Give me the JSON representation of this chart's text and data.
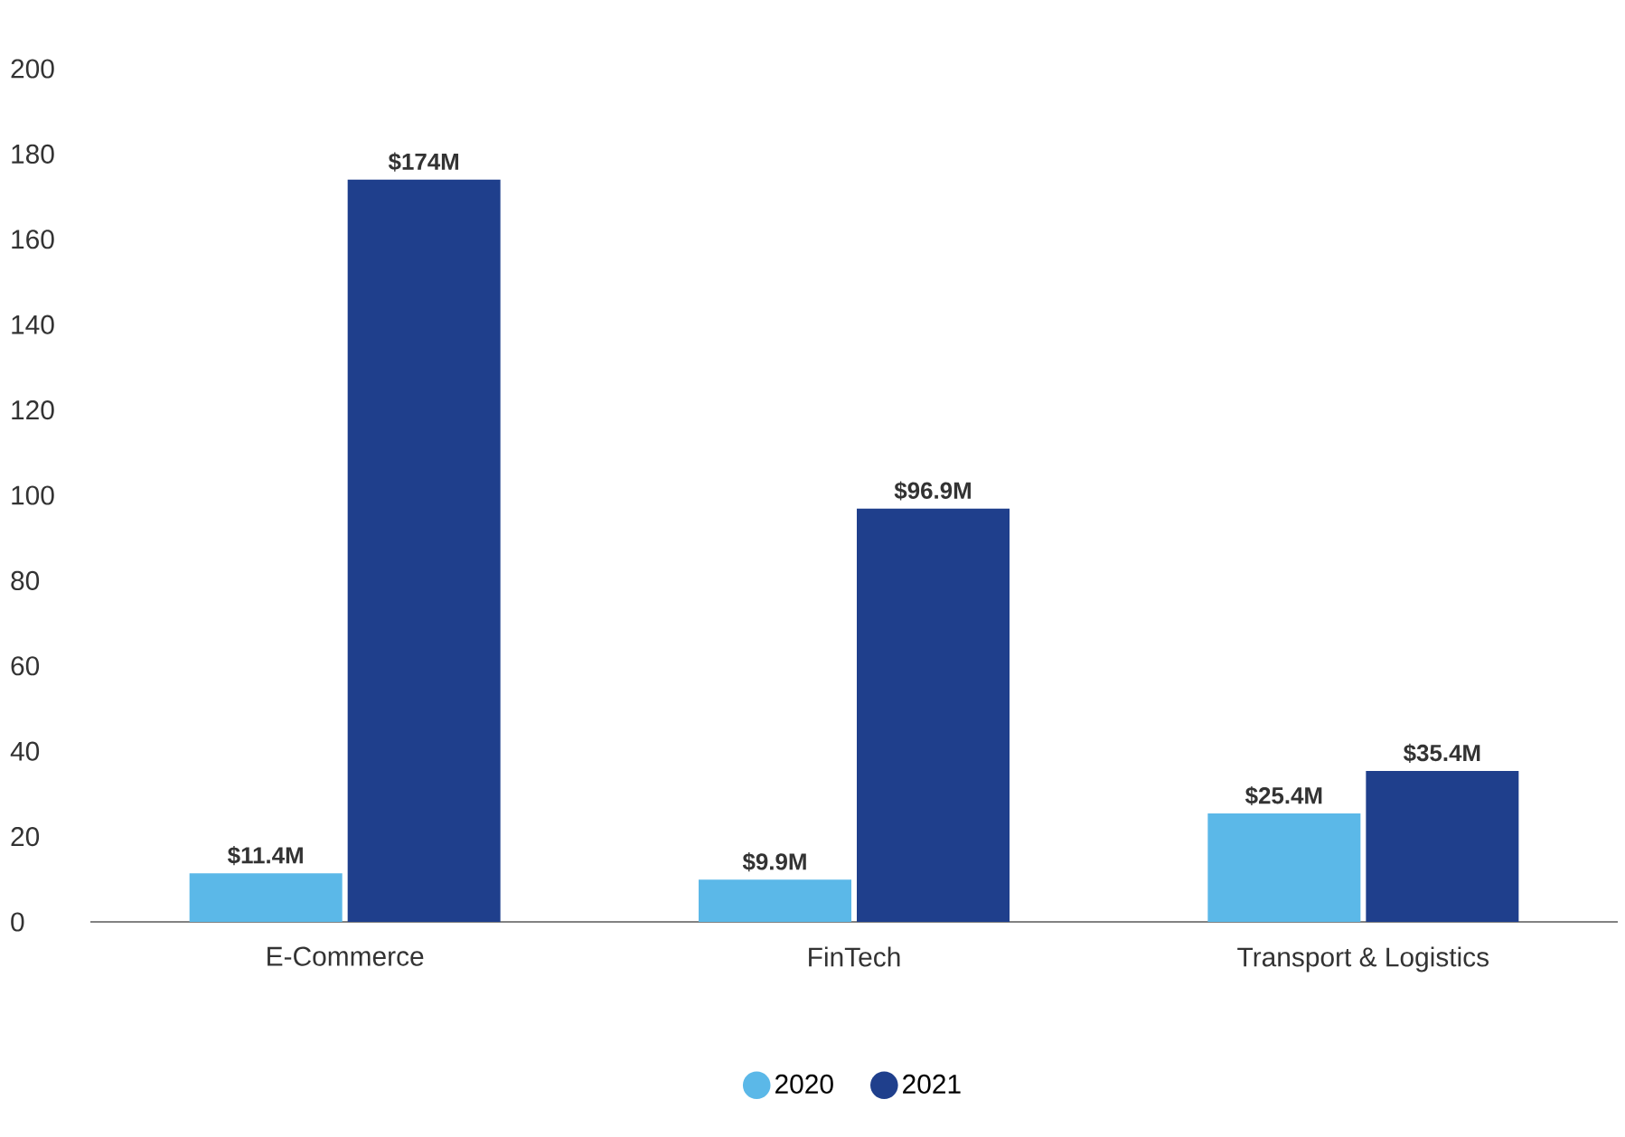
{
  "chart_data": {
    "type": "bar",
    "categories": [
      "E-Commerce",
      "FinTech",
      "Transport & Logistics"
    ],
    "series": [
      {
        "name": "2020",
        "color": "#5bb8e8",
        "values": [
          11.4,
          9.9,
          25.4
        ],
        "value_labels": [
          "$11.4M",
          "$9.9M",
          "$25.4M"
        ]
      },
      {
        "name": "2021",
        "color": "#1f3f8c",
        "values": [
          174,
          96.9,
          35.4
        ],
        "value_labels": [
          "$174M",
          "$96.9M",
          "$35.4M"
        ]
      }
    ],
    "ylim": [
      0,
      200
    ],
    "yticks": [
      0,
      20,
      40,
      60,
      80,
      100,
      120,
      140,
      160,
      180,
      200
    ],
    "grid": false,
    "legend": "bottom"
  }
}
